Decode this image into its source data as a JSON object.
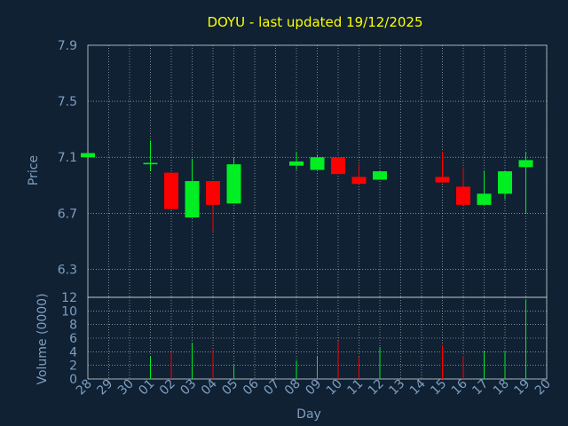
{
  "colors": {
    "background": "#0f2133",
    "grid": "#c8d0d8",
    "axis_text": "#7f9fc0",
    "title": "#ffff00",
    "up": "#00ee22",
    "down": "#ff0000",
    "frame": "#ffffff"
  },
  "chart_data": {
    "type": "candlestick",
    "title": "DOYU - last updated 19/12/2025",
    "xlabel": "Day",
    "price_axis": {
      "label": "Price",
      "ylim": [
        6.1,
        7.9
      ],
      "ticks": [
        "7.9",
        "7.5",
        "7.1",
        "6.7",
        "6.3"
      ]
    },
    "volume_axis": {
      "label": "Volume (0000)",
      "ylim": [
        0,
        12
      ],
      "ticks": [
        "12",
        "10",
        "8",
        "6",
        "4",
        "2",
        "0"
      ]
    },
    "x_labels": [
      "28",
      "29",
      "30",
      "01",
      "02",
      "03",
      "04",
      "05",
      "06",
      "07",
      "08",
      "09",
      "10",
      "11",
      "12",
      "13",
      "14",
      "15",
      "16",
      "17",
      "18",
      "19",
      "20"
    ],
    "candles": [
      {
        "day": "28",
        "open": 7.1,
        "close": 7.13,
        "high": 7.13,
        "low": 7.1,
        "volume": 0
      },
      {
        "day": "01",
        "open": 7.05,
        "close": 7.06,
        "high": 7.22,
        "low": 7.0,
        "volume": 3.3
      },
      {
        "day": "02",
        "open": 6.99,
        "close": 6.73,
        "high": 6.99,
        "low": 6.73,
        "volume": 4.0
      },
      {
        "day": "03",
        "open": 6.67,
        "close": 6.93,
        "high": 7.09,
        "low": 6.67,
        "volume": 5.3
      },
      {
        "day": "04",
        "open": 6.93,
        "close": 6.76,
        "high": 6.93,
        "low": 6.57,
        "volume": 4.3
      },
      {
        "day": "05",
        "open": 6.77,
        "close": 7.05,
        "high": 7.1,
        "low": 6.77,
        "volume": 2.0
      },
      {
        "day": "08",
        "open": 7.04,
        "close": 7.07,
        "high": 7.14,
        "low": 7.01,
        "volume": 2.7
      },
      {
        "day": "09",
        "open": 7.01,
        "close": 7.1,
        "high": 7.12,
        "low": 7.01,
        "volume": 3.4
      },
      {
        "day": "10",
        "open": 7.1,
        "close": 6.98,
        "high": 7.1,
        "low": 6.98,
        "volume": 5.6
      },
      {
        "day": "11",
        "open": 6.96,
        "close": 6.91,
        "high": 7.05,
        "low": 6.91,
        "volume": 3.3
      },
      {
        "day": "12",
        "open": 6.94,
        "close": 7.0,
        "high": 7.0,
        "low": 6.94,
        "volume": 4.7
      },
      {
        "day": "15",
        "open": 6.96,
        "close": 6.92,
        "high": 7.14,
        "low": 6.92,
        "volume": 5.0
      },
      {
        "day": "16",
        "open": 6.89,
        "close": 6.76,
        "high": 7.03,
        "low": 6.76,
        "volume": 3.4
      },
      {
        "day": "17",
        "open": 6.76,
        "close": 6.84,
        "high": 7.0,
        "low": 6.76,
        "volume": 4.1
      },
      {
        "day": "18",
        "open": 6.84,
        "close": 7.0,
        "high": 7.0,
        "low": 6.8,
        "volume": 4.1
      },
      {
        "day": "19",
        "open": 7.03,
        "close": 7.08,
        "high": 7.14,
        "low": 6.7,
        "volume": 11.7
      }
    ]
  }
}
